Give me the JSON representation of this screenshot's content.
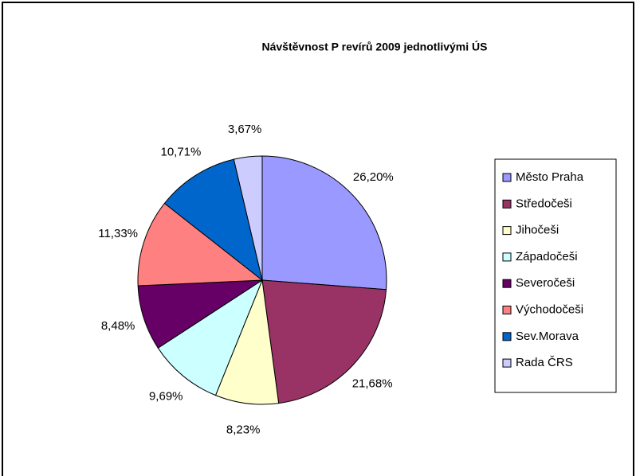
{
  "chart_data": {
    "type": "pie",
    "title": "Návštěvnost P revírů 2009 jednotlivými ÚS",
    "categories": [
      "Město Praha",
      "Středočeši",
      "Jihočeši",
      "Západočeši",
      "Severočeši",
      "Východočeši",
      "Sev.Morava",
      "Rada ČRS"
    ],
    "values": [
      26.2,
      21.68,
      8.23,
      9.69,
      8.48,
      11.33,
      10.71,
      3.67
    ],
    "value_labels": [
      "26,20%",
      "21,68%",
      "8,23%",
      "9,69%",
      "8,48%",
      "11,33%",
      "10,71%",
      "3,67%"
    ],
    "colors": [
      "#9999ff",
      "#993366",
      "#ffffcc",
      "#ccffff",
      "#660066",
      "#ff8080",
      "#0066cc",
      "#ccccff"
    ],
    "legend": "right"
  }
}
